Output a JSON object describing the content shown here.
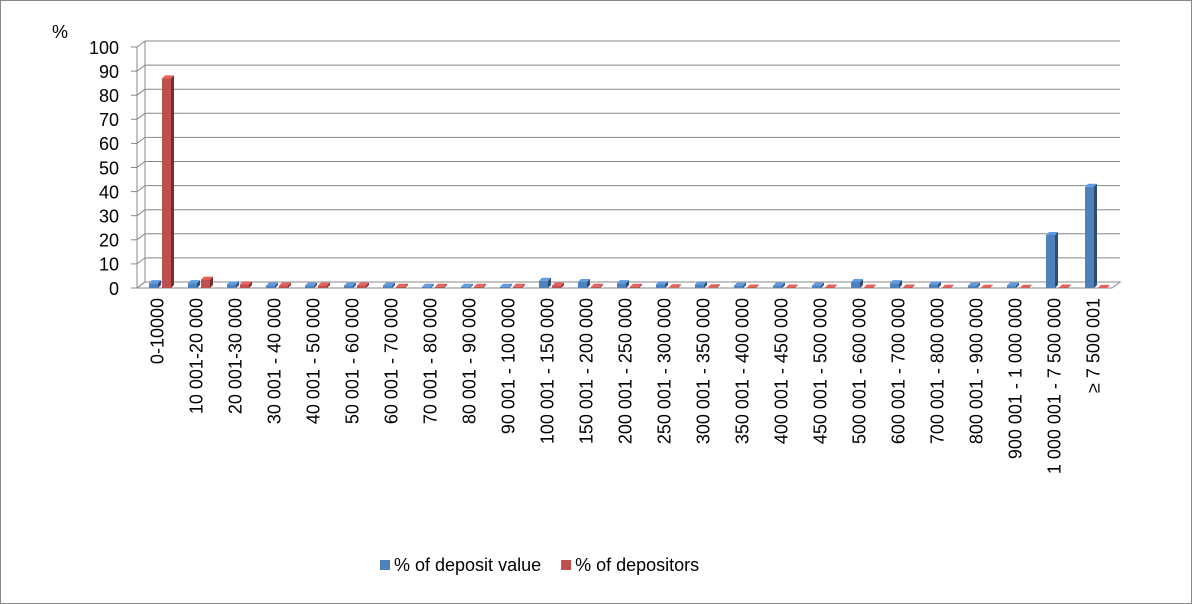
{
  "chart_data": {
    "type": "bar3d",
    "y_label": "%",
    "categories": [
      "0-10000",
      "10 001-20 000",
      "20 001-30 000",
      "30 001 - 40 000",
      "40 001 - 50 000",
      "50 001 - 60 000",
      "60 001 - 70 000",
      "70 001 - 80 000",
      "80 001 - 90 000",
      "90 001 - 100 000",
      "100 001 - 150 000",
      "150 001 - 200 000",
      "200 001 - 250 000",
      "250 001 - 300 000",
      "300 001 - 350 000",
      "350 001 - 400 000",
      "400 001 - 450 000",
      "450 001 - 500 000",
      "500 001 - 600 000",
      "600 001 - 700 000",
      "700 001 - 800 000",
      "800 001 - 900 000",
      "900 001 - 1 000 000",
      "1 000 001 - 7 500 000",
      "≥ 7 500 001"
    ],
    "series": [
      {
        "name": "% of deposit value",
        "color": "#4f81bd",
        "values": [
          2,
          2,
          1.5,
          1,
          1,
          1,
          1,
          0.5,
          0.5,
          0.5,
          3,
          2.5,
          2,
          1.5,
          1.5,
          1,
          1,
          1,
          2.5,
          2,
          1.5,
          1,
          1,
          22,
          42
        ]
      },
      {
        "name": "% of depositors",
        "color": "#c0504d",
        "values": [
          87,
          3.5,
          1.5,
          1,
          1,
          1,
          0.5,
          0.5,
          0.5,
          0.5,
          1,
          0.5,
          0.5,
          0.3,
          0.3,
          0.2,
          0.2,
          0.2,
          0.2,
          0.2,
          0.1,
          0.1,
          0.1,
          0.2,
          0.05
        ]
      }
    ],
    "ylim": [
      0,
      100
    ],
    "yticks": [
      0,
      10,
      20,
      30,
      40,
      50,
      60,
      70,
      80,
      90,
      100
    ],
    "grid": true,
    "legend": "bottom"
  }
}
